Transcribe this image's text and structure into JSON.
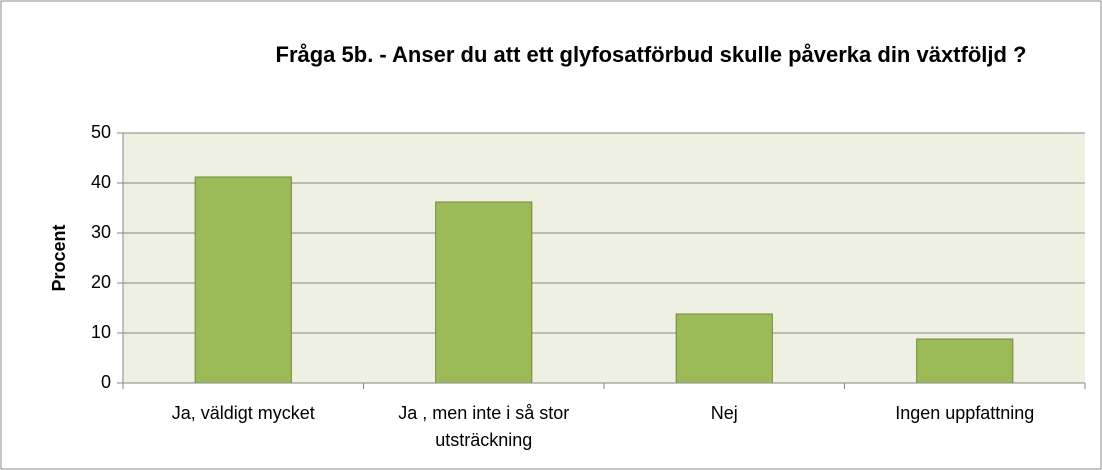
{
  "chart_data": {
    "type": "bar",
    "title": "Fråga 5b. - Anser du att ett glyfosatförbud skulle påverka din växtföljd ?",
    "y_label": "Procent",
    "categories": [
      "Ja, väldigt mycket",
      "Ja , men inte i så stor utsträckning",
      "Nej",
      "Ingen uppfattning"
    ],
    "values": [
      41.2,
      36.2,
      13.8,
      8.8
    ],
    "color": "#9bbb59",
    "ylim": [
      0,
      50
    ],
    "yticks": [
      0,
      10,
      20,
      30,
      40,
      50
    ],
    "grid": true
  }
}
